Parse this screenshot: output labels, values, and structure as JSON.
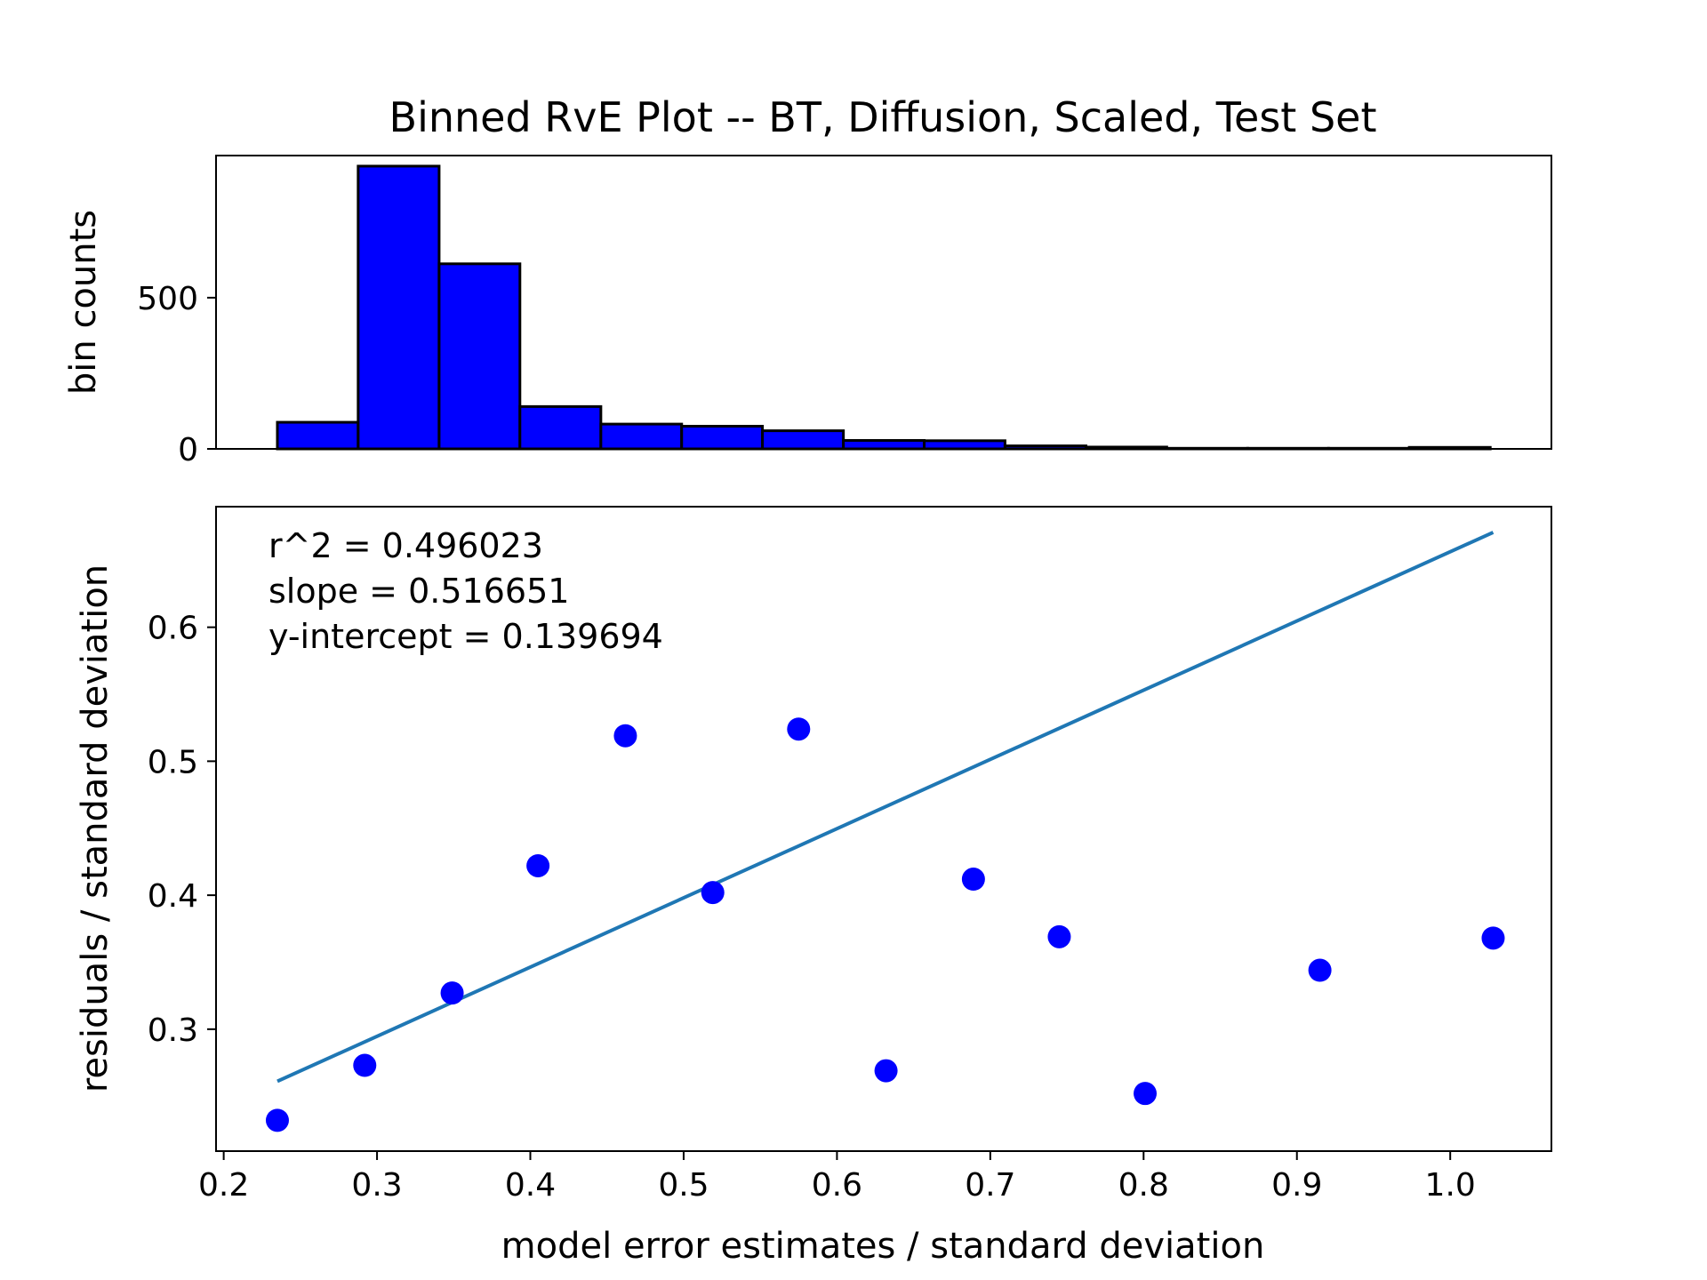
{
  "chart_data": [
    {
      "type": "bar",
      "title": "Binned RvE Plot -- BT, Diffusion, Scaled, Test Set",
      "ylabel": "bin counts",
      "bin_edges": [
        0.235,
        0.2877,
        0.3405,
        0.3932,
        0.446,
        0.4987,
        0.5514,
        0.6042,
        0.6569,
        0.7096,
        0.7624,
        0.8151,
        0.8679,
        0.9206,
        0.9733,
        1.0261
      ],
      "values": [
        88,
        935,
        612,
        140,
        82,
        75,
        60,
        28,
        27,
        10,
        6,
        2,
        2,
        2,
        5
      ],
      "ylim": [
        0,
        970
      ],
      "yticks": [
        0,
        500
      ],
      "xlim": [
        0.195,
        1.066
      ],
      "bar_color": "#0000ff",
      "edge_color": "#000000"
    },
    {
      "type": "scatter",
      "xlabel": "model error estimates / standard deviation",
      "ylabel": "residuals / standard deviation",
      "xlim": [
        0.195,
        1.066
      ],
      "ylim": [
        0.209,
        0.69
      ],
      "xticks": [
        "0.2",
        "0.3",
        "0.4",
        "0.5",
        "0.6",
        "0.7",
        "0.8",
        "0.9",
        "1.0"
      ],
      "yticks": [
        "0.3",
        "0.4",
        "0.5",
        "0.6"
      ],
      "points": [
        [
          0.235,
          0.232
        ],
        [
          0.292,
          0.273
        ],
        [
          0.349,
          0.327
        ],
        [
          0.405,
          0.422
        ],
        [
          0.462,
          0.519
        ],
        [
          0.519,
          0.402
        ],
        [
          0.575,
          0.524
        ],
        [
          0.632,
          0.269
        ],
        [
          0.689,
          0.412
        ],
        [
          0.745,
          0.369
        ],
        [
          0.801,
          0.252
        ],
        [
          0.915,
          0.344
        ],
        [
          1.028,
          0.368
        ]
      ],
      "point_color": "#0000ff",
      "fit_line": {
        "slope": 0.516651,
        "intercept": 0.139694,
        "x_range": [
          0.235,
          1.028
        ],
        "color": "#1f77b4"
      },
      "annotations": [
        "r^2 = 0.496023",
        "slope = 0.516651",
        "y-intercept = 0.139694"
      ]
    }
  ]
}
